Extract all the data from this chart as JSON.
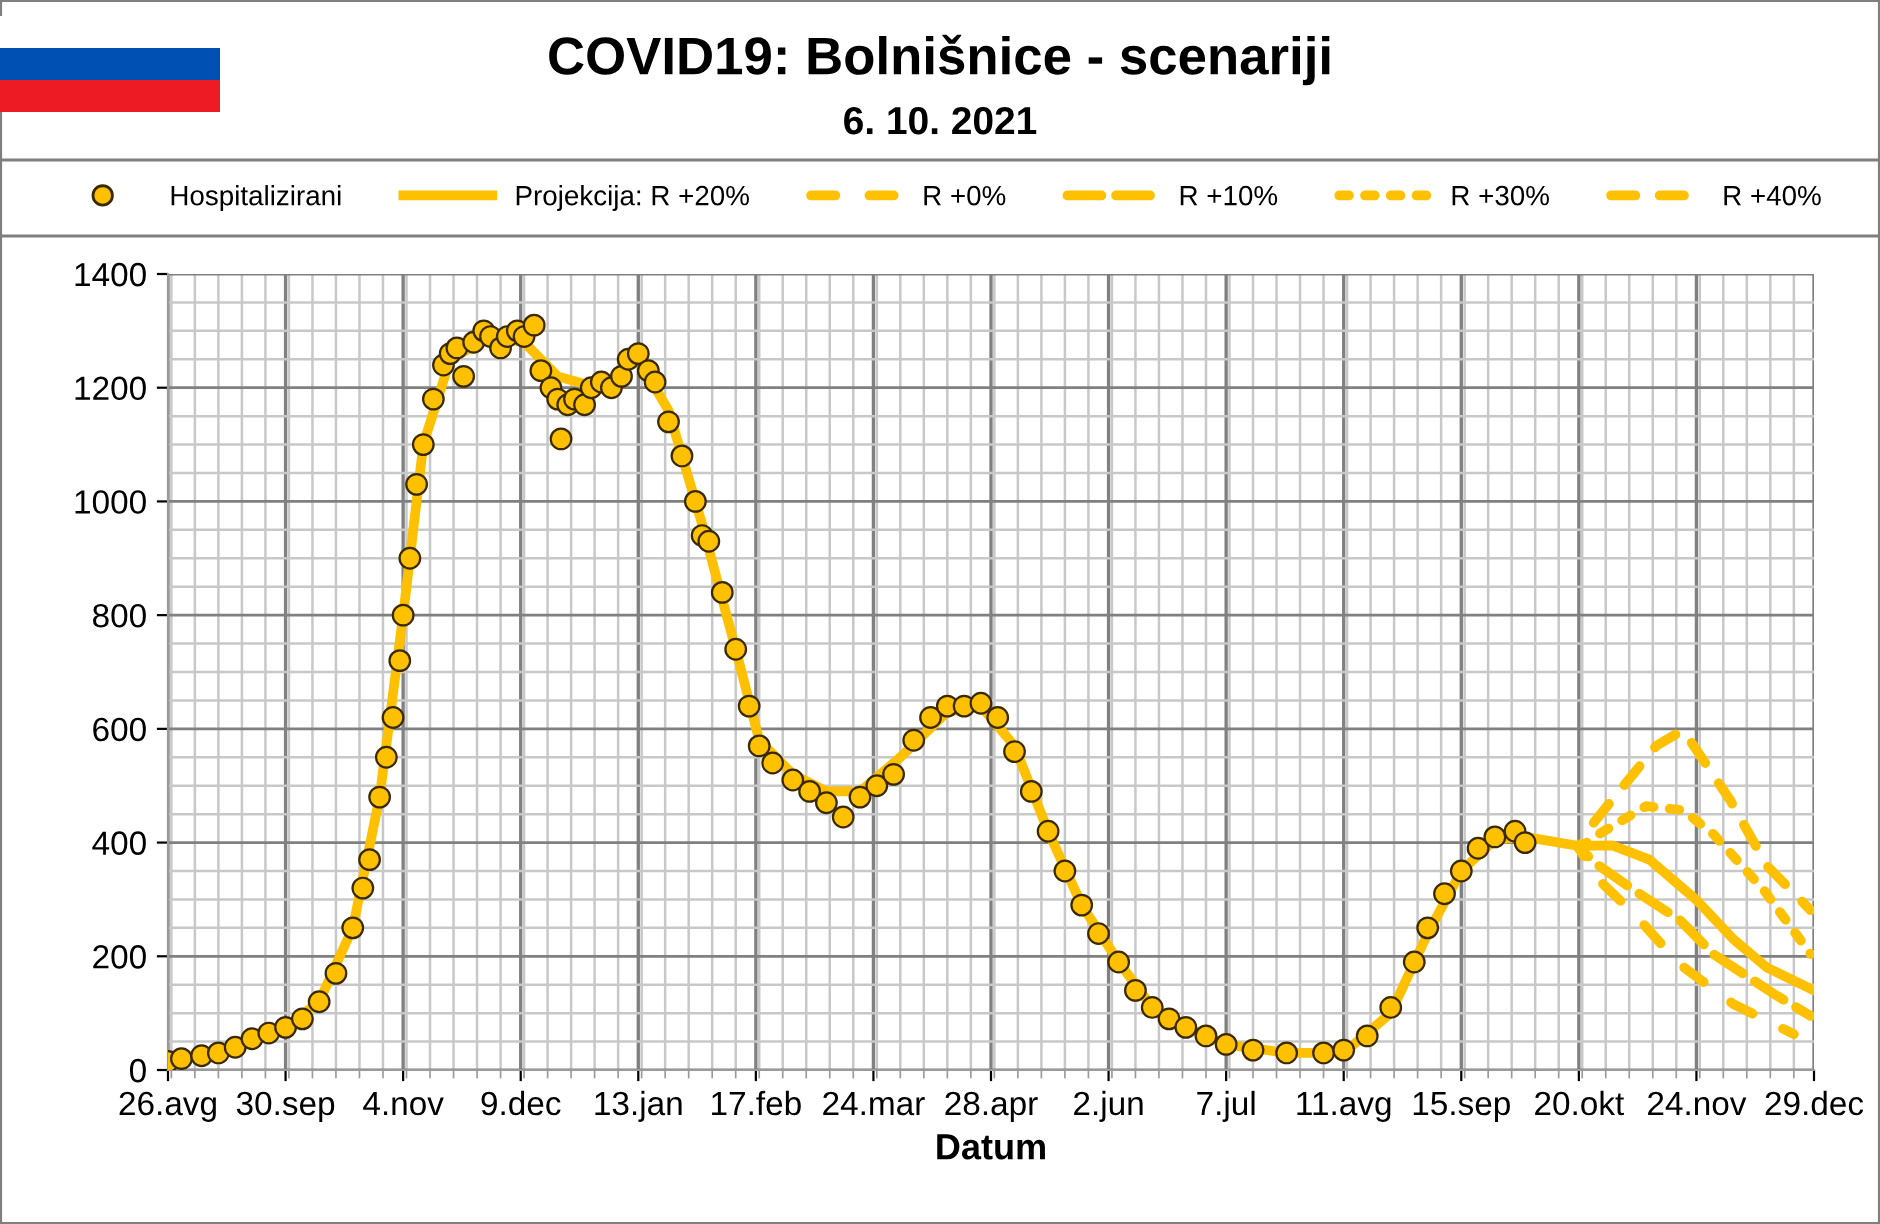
{
  "chart_data": {
    "type": "line",
    "title": "COVID19: Bolnišnice - scenariji",
    "subtitle": "6. 10. 2021",
    "xlabel": "Datum",
    "xlim": [
      "2020-08-26",
      "2021-12-29"
    ],
    "xticks": [
      {
        "value": "2020-08-26",
        "label": "26.avg"
      },
      {
        "value": "2020-09-30",
        "label": "30.sep"
      },
      {
        "value": "2020-11-04",
        "label": "4.nov"
      },
      {
        "value": "2020-12-09",
        "label": "9.dec"
      },
      {
        "value": "2021-01-13",
        "label": "13.jan"
      },
      {
        "value": "2021-02-17",
        "label": "17.feb"
      },
      {
        "value": "2021-03-24",
        "label": "24.mar"
      },
      {
        "value": "2021-04-28",
        "label": "28.apr"
      },
      {
        "value": "2021-06-02",
        "label": "2.jun"
      },
      {
        "value": "2021-07-07",
        "label": "7.jul"
      },
      {
        "value": "2021-08-11",
        "label": "11.avg"
      },
      {
        "value": "2021-09-15",
        "label": "15.sep"
      },
      {
        "value": "2021-10-20",
        "label": "20.okt"
      },
      {
        "value": "2021-11-24",
        "label": "24.nov"
      },
      {
        "value": "2021-12-29",
        "label": "29.dec"
      }
    ],
    "ylim": [
      0,
      1400
    ],
    "yticks": [
      0,
      200,
      400,
      600,
      800,
      1000,
      1200,
      1400
    ],
    "grid": true,
    "legend": "top",
    "series": [
      {
        "name": "Hospitalizirani",
        "type": "scatter",
        "marker": "circle",
        "color": "#ffc000",
        "x": [
          "2020-08-26",
          "2020-08-30",
          "2020-09-05",
          "2020-09-10",
          "2020-09-15",
          "2020-09-20",
          "2020-09-25",
          "2020-09-30",
          "2020-10-05",
          "2020-10-10",
          "2020-10-15",
          "2020-10-20",
          "2020-10-23",
          "2020-10-25",
          "2020-10-28",
          "2020-10-30",
          "2020-11-01",
          "2020-11-03",
          "2020-11-04",
          "2020-11-06",
          "2020-11-08",
          "2020-11-10",
          "2020-11-13",
          "2020-11-16",
          "2020-11-18",
          "2020-11-20",
          "2020-11-22",
          "2020-11-25",
          "2020-11-28",
          "2020-11-30",
          "2020-12-03",
          "2020-12-05",
          "2020-12-08",
          "2020-12-10",
          "2020-12-13",
          "2020-12-15",
          "2020-12-18",
          "2020-12-20",
          "2020-12-21",
          "2020-12-23",
          "2020-12-25",
          "2020-12-28",
          "2020-12-30",
          "2021-01-02",
          "2021-01-05",
          "2021-01-08",
          "2021-01-10",
          "2021-01-13",
          "2021-01-16",
          "2021-01-18",
          "2021-01-22",
          "2021-01-26",
          "2021-01-30",
          "2021-02-01",
          "2021-02-03",
          "2021-02-07",
          "2021-02-11",
          "2021-02-15",
          "2021-02-18",
          "2021-02-22",
          "2021-02-28",
          "2021-03-05",
          "2021-03-10",
          "2021-03-15",
          "2021-03-20",
          "2021-03-25",
          "2021-03-30",
          "2021-04-05",
          "2021-04-10",
          "2021-04-15",
          "2021-04-20",
          "2021-04-25",
          "2021-04-30",
          "2021-05-05",
          "2021-05-10",
          "2021-05-15",
          "2021-05-20",
          "2021-05-25",
          "2021-05-30",
          "2021-06-05",
          "2021-06-10",
          "2021-06-15",
          "2021-06-20",
          "2021-06-25",
          "2021-07-01",
          "2021-07-07",
          "2021-07-15",
          "2021-07-25",
          "2021-08-05",
          "2021-08-11",
          "2021-08-18",
          "2021-08-25",
          "2021-09-01",
          "2021-09-05",
          "2021-09-10",
          "2021-09-15",
          "2021-09-20",
          "2021-09-25",
          "2021-10-01",
          "2021-10-04"
        ],
        "values": [
          15,
          20,
          25,
          30,
          40,
          55,
          65,
          75,
          90,
          120,
          170,
          250,
          320,
          370,
          480,
          550,
          620,
          720,
          800,
          900,
          1030,
          1100,
          1180,
          1240,
          1260,
          1270,
          1220,
          1280,
          1300,
          1290,
          1270,
          1290,
          1300,
          1290,
          1310,
          1230,
          1200,
          1180,
          1110,
          1170,
          1180,
          1170,
          1200,
          1210,
          1200,
          1220,
          1250,
          1260,
          1230,
          1210,
          1140,
          1080,
          1000,
          940,
          930,
          840,
          740,
          640,
          570,
          540,
          510,
          490,
          470,
          445,
          480,
          500,
          520,
          580,
          620,
          640,
          640,
          645,
          620,
          560,
          490,
          420,
          350,
          290,
          240,
          190,
          140,
          110,
          90,
          75,
          60,
          45,
          35,
          30,
          30,
          35,
          60,
          110,
          190,
          250,
          310,
          350,
          390,
          410,
          420,
          400
        ]
      },
      {
        "name": "Projekcija: R +20%",
        "line_style": "solid",
        "color": "#ffc000",
        "x": [
          "2020-08-26",
          "2020-09-15",
          "2020-09-30",
          "2020-10-10",
          "2020-10-20",
          "2020-10-28",
          "2020-11-04",
          "2020-11-10",
          "2020-11-18",
          "2020-11-30",
          "2020-12-10",
          "2020-12-20",
          "2021-01-01",
          "2021-01-13",
          "2021-01-22",
          "2021-02-01",
          "2021-02-11",
          "2021-02-18",
          "2021-02-28",
          "2021-03-10",
          "2021-03-20",
          "2021-04-01",
          "2021-04-15",
          "2021-04-25",
          "2021-05-05",
          "2021-05-15",
          "2021-05-25",
          "2021-06-05",
          "2021-06-15",
          "2021-06-25",
          "2021-07-07",
          "2021-07-25",
          "2021-08-11",
          "2021-08-25",
          "2021-09-05",
          "2021-09-15",
          "2021-09-25",
          "2021-10-04",
          "2021-10-20",
          "2021-10-30",
          "2021-11-10",
          "2021-11-24",
          "2021-12-05",
          "2021-12-15",
          "2021-12-29"
        ],
        "values": [
          15,
          40,
          75,
          120,
          250,
          480,
          800,
          1100,
          1250,
          1290,
          1280,
          1220,
          1200,
          1250,
          1160,
          960,
          740,
          580,
          520,
          490,
          490,
          550,
          630,
          640,
          570,
          420,
          290,
          190,
          110,
          75,
          45,
          30,
          30,
          100,
          240,
          350,
          405,
          410,
          394,
          395,
          370,
          299,
          230,
          180,
          140
        ]
      },
      {
        "name": "R +0%",
        "line_style": "dashed",
        "color": "#ffc000",
        "x": [
          "2021-10-20",
          "2021-10-26",
          "2021-11-06",
          "2021-11-19",
          "2021-12-05",
          "2021-12-23"
        ],
        "values": [
          390,
          334,
          271,
          186,
          116,
          63
        ]
      },
      {
        "name": "R +10%",
        "line_style": "dashed",
        "color": "#ffc000",
        "x": [
          "2021-10-20",
          "2021-10-26",
          "2021-11-07",
          "2021-11-19",
          "2021-11-29",
          "2021-12-08",
          "2021-12-17",
          "2021-12-28"
        ],
        "values": [
          390,
          359,
          310,
          264,
          204,
          169,
          134,
          95
        ]
      },
      {
        "name": "R +30%",
        "line_style": "dotted",
        "color": "#ffc000",
        "x": [
          "2021-10-20",
          "2021-10-26",
          "2021-11-09",
          "2021-11-20",
          "2021-11-29",
          "2021-12-14",
          "2021-12-28"
        ],
        "values": [
          390,
          415,
          464,
          457,
          415,
          317,
          204
        ]
      },
      {
        "name": "R +40%",
        "line_style": "dashed",
        "color": "#ffc000",
        "x": [
          "2021-10-20",
          "2021-10-24",
          "2021-11-12",
          "2021-11-20",
          "2021-12-04",
          "2021-12-15",
          "2021-12-28"
        ],
        "values": [
          390,
          432,
          570,
          598,
          475,
          359,
          281
        ]
      }
    ]
  }
}
